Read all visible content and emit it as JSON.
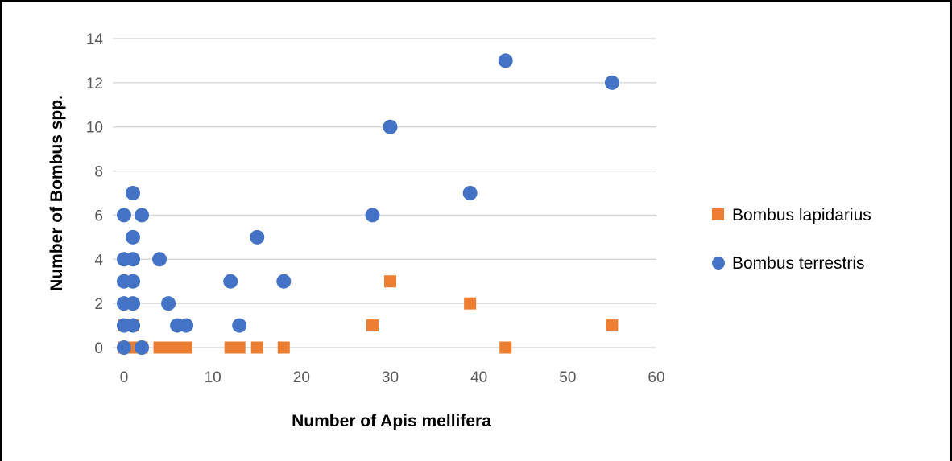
{
  "chart_data": {
    "type": "scatter",
    "title": "",
    "xlabel": "Number of Apis mellifera",
    "ylabel": "Number of Bombus spp.",
    "xlim": [
      0,
      60
    ],
    "ylim": [
      0,
      14
    ],
    "xticks": [
      "0",
      "10",
      "20",
      "30",
      "40",
      "50",
      "60"
    ],
    "yticks": [
      "0",
      "2",
      "4",
      "6",
      "8",
      "10",
      "12",
      "14"
    ],
    "grid": "horizontal",
    "legend_position": "right",
    "series": [
      {
        "name": "Bombus lapidarius",
        "marker": "square",
        "color": "#ED7D31",
        "points": [
          [
            0,
            0
          ],
          [
            0,
            1
          ],
          [
            1,
            0
          ],
          [
            1,
            1
          ],
          [
            2,
            0
          ],
          [
            4,
            0
          ],
          [
            5,
            0
          ],
          [
            6,
            0
          ],
          [
            7,
            0
          ],
          [
            12,
            0
          ],
          [
            13,
            0
          ],
          [
            15,
            0
          ],
          [
            18,
            0
          ],
          [
            28,
            1
          ],
          [
            30,
            3
          ],
          [
            39,
            2
          ],
          [
            43,
            0
          ],
          [
            55,
            1
          ]
        ]
      },
      {
        "name": "Bombus terrestris",
        "marker": "circle",
        "color": "#4472C4",
        "points": [
          [
            0,
            0
          ],
          [
            0,
            1
          ],
          [
            0,
            2
          ],
          [
            0,
            3
          ],
          [
            0,
            4
          ],
          [
            0,
            6
          ],
          [
            1,
            1
          ],
          [
            1,
            2
          ],
          [
            1,
            3
          ],
          [
            1,
            4
          ],
          [
            1,
            5
          ],
          [
            1,
            7
          ],
          [
            2,
            0
          ],
          [
            2,
            6
          ],
          [
            4,
            4
          ],
          [
            5,
            2
          ],
          [
            6,
            1
          ],
          [
            7,
            1
          ],
          [
            12,
            3
          ],
          [
            13,
            1
          ],
          [
            15,
            5
          ],
          [
            18,
            3
          ],
          [
            28,
            6
          ],
          [
            30,
            10
          ],
          [
            39,
            7
          ],
          [
            43,
            13
          ],
          [
            55,
            12
          ]
        ]
      }
    ]
  }
}
